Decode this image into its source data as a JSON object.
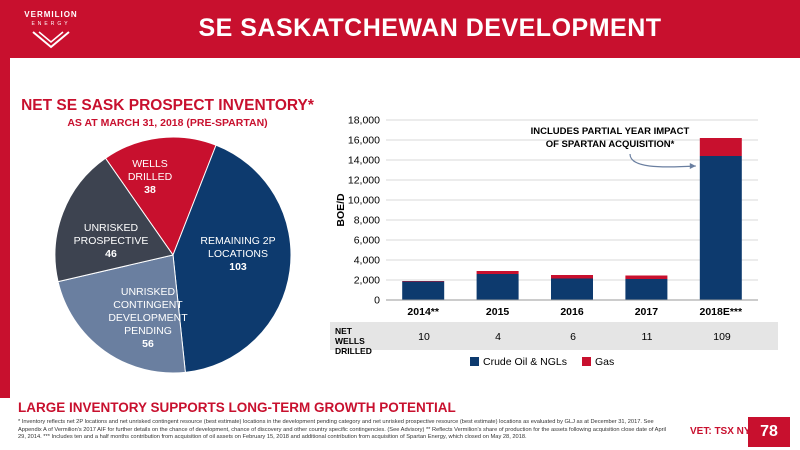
{
  "header": {
    "title": "SE SASKATCHEWAN DEVELOPMENT",
    "logo_name": "VERMILION",
    "logo_sub": "ENERGY"
  },
  "pie_section": {
    "title": "NET SE SASK PROSPECT INVENTORY*",
    "subtitle": "AS AT MARCH 31, 2018 (PRE-SPARTAN)"
  },
  "colors": {
    "brand_red": "#c8102e",
    "navy": "#0d3a6e",
    "slate": "#3d4350",
    "steel": "#6a7fa0"
  },
  "chart_data": [
    {
      "type": "pie",
      "slices": [
        {
          "label": "WELLS DRILLED",
          "value": 38,
          "color": "#c8102e"
        },
        {
          "label": "REMAINING 2P LOCATIONS",
          "value": 103,
          "color": "#0d3a6e"
        },
        {
          "label": "UNRISKED CONTINGENT DEVELOPMENT PENDING",
          "value": 56,
          "color": "#6a7fa0"
        },
        {
          "label": "UNRISKED PROSPECTIVE",
          "value": 46,
          "color": "#3d4350"
        }
      ]
    },
    {
      "type": "bar",
      "stacked": true,
      "categories": [
        "2014**",
        "2015",
        "2016",
        "2017",
        "2018E***"
      ],
      "series": [
        {
          "name": "Crude Oil & NGLs",
          "color": "#0d3a6e",
          "values": [
            1850,
            2600,
            2150,
            2100,
            14400
          ]
        },
        {
          "name": "Gas",
          "color": "#c8102e",
          "values": [
            50,
            300,
            350,
            350,
            1800
          ]
        }
      ],
      "ylabel": "BOE/D",
      "ylim": [
        0,
        18000
      ],
      "yticks": [
        "0",
        "2,000",
        "4,000",
        "6,000",
        "8,000",
        "10,000",
        "12,000",
        "14,000",
        "16,000",
        "18,000"
      ],
      "annotation": "INCLUDES PARTIAL YEAR IMPACT OF SPARTAN ACQUISITION*",
      "net_wells": {
        "label": "NET WELLS DRILLED",
        "values": [
          "10",
          "4",
          "6",
          "11",
          "109"
        ]
      },
      "legend_position": "bottom"
    }
  ],
  "bottom_text": "LARGE INVENTORY SUPPORTS LONG-TERM GROWTH POTENTIAL",
  "footnote": "* Inventory reflects net 2P locations and net unrisked contingent resource (best estimate) locations in the development pending category and net unrisked prospective resource (best estimate) locations as evaluated by GLJ as at December 31, 2017. See Appendix A of Vermilion's 2017 AIF for further details on the chance of development, chance of discovery and other country specific contingencies. (See Advisory) ** Reflects Vermilion's share of production for the assets following acquisition close date of April 29, 2014. *** Includes ten and a half months contribution from acquisition of oil assets on February 15, 2018 and additional contribution from acquisition of Spartan Energy, which closed on May 28, 2018.",
  "exchanges": "VET: TSX NYSE",
  "page_number": "78"
}
